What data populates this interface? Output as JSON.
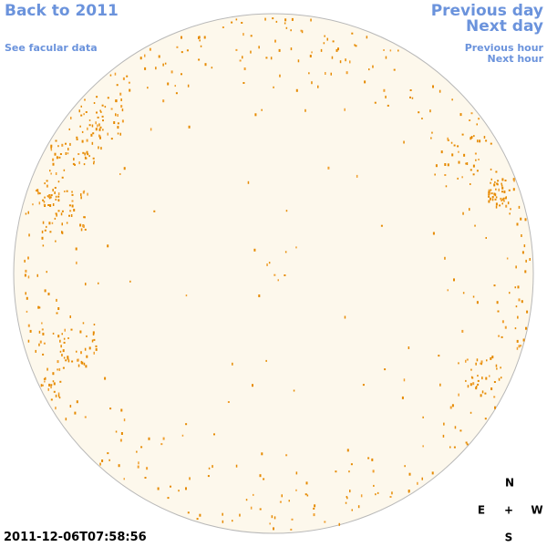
{
  "links": {
    "back": "Back to 2011",
    "facular": "See facular data",
    "previous_day": "Previous day",
    "next_day": "Next day",
    "previous_hour": "Previous hour",
    "next_hour": "Next hour"
  },
  "timestamp": "2011-12-06T07:58:56",
  "compass": {
    "north": "N",
    "east": "E",
    "center": "+",
    "west": "W",
    "south": "S"
  }
}
